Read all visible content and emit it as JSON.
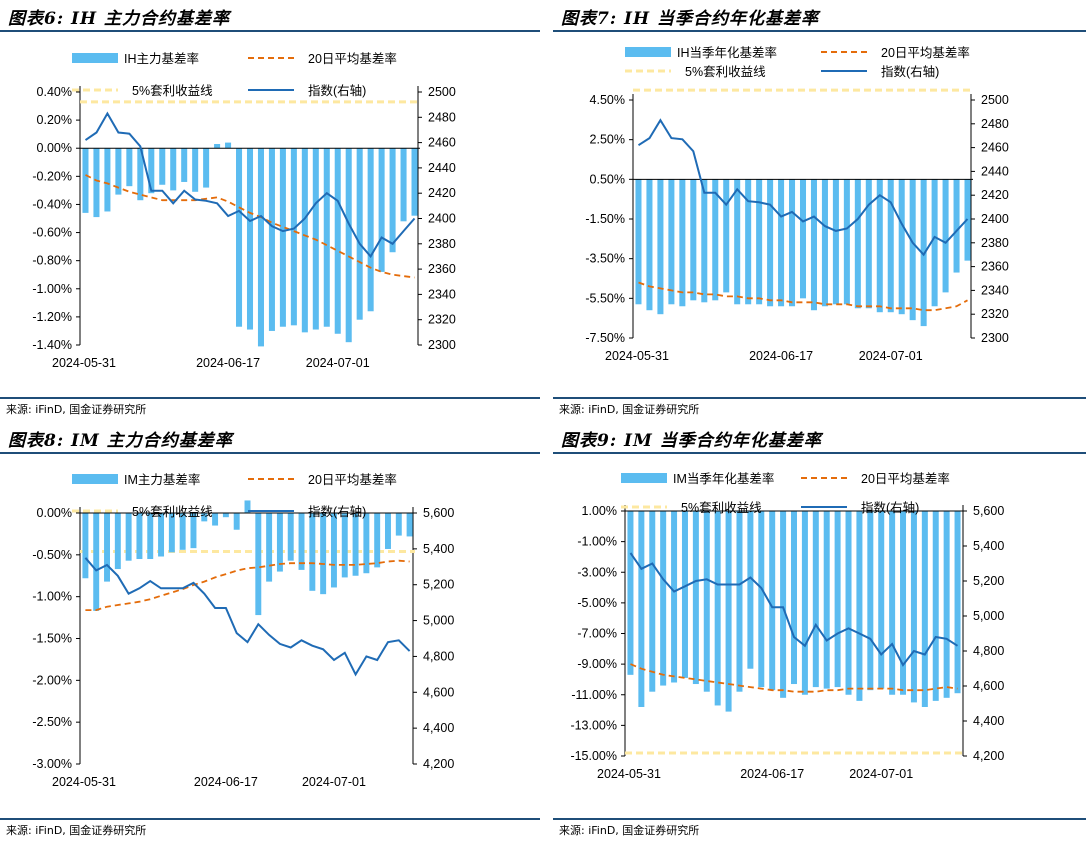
{
  "colors": {
    "bar": "#5bbcf0",
    "ma": "#e46c0a",
    "arb": "#fde8a0",
    "index": "#1f6bb5",
    "rule": "#1f4e79"
  },
  "chart_data": [
    {
      "type": "bar",
      "title": "图表6: IH 主力合约基差率",
      "source": "来源: iFinD, 国金证券研究所",
      "legend": {
        "bar": "IH主力基差率",
        "ma": "20日平均基差率",
        "arb": "5%套利收益线",
        "index": "指数(右轴)"
      },
      "x_ticks": [
        "2024-05-31",
        "2024-06-17",
        "2024-07-01"
      ],
      "x_tick_index": [
        0,
        13,
        23
      ],
      "y_left": {
        "min": -1.4,
        "max": 0.4,
        "step": 0.2,
        "decimals": 2,
        "suffix": "%"
      },
      "y_right": {
        "min": 2300,
        "max": 2500,
        "step": 20,
        "sep": ""
      },
      "arb_level": 0.33,
      "bars": [
        -0.46,
        -0.49,
        -0.45,
        -0.33,
        -0.27,
        -0.37,
        -0.32,
        -0.26,
        -0.3,
        -0.24,
        -0.31,
        -0.28,
        0.03,
        0.04,
        -1.27,
        -1.29,
        -1.41,
        -1.3,
        -1.27,
        -1.26,
        -1.31,
        -1.29,
        -1.27,
        -1.32,
        -1.38,
        -1.22,
        -1.16,
        -0.88,
        -0.74,
        -0.52,
        -0.48
      ],
      "ma": [
        -0.19,
        -0.23,
        -0.25,
        -0.28,
        -0.31,
        -0.33,
        -0.35,
        -0.37,
        -0.37,
        -0.37,
        -0.37,
        -0.36,
        -0.35,
        -0.38,
        -0.42,
        -0.46,
        -0.49,
        -0.53,
        -0.56,
        -0.59,
        -0.62,
        -0.65,
        -0.69,
        -0.73,
        -0.77,
        -0.81,
        -0.85,
        -0.88,
        -0.9,
        -0.91,
        -0.92
      ],
      "ma_from": 0,
      "arb_left": true,
      "index": [
        2462,
        2468,
        2483,
        2468,
        2467,
        2457,
        2422,
        2422,
        2412,
        2422,
        2415,
        2414,
        2412,
        2402,
        2406,
        2398,
        2402,
        2394,
        2390,
        2392,
        2400,
        2412,
        2420,
        2414,
        2396,
        2380,
        2370,
        2385,
        2380,
        2390,
        2400
      ],
      "index_from": 0,
      "bar_edge": 0
    },
    {
      "type": "bar",
      "title": "图表7: IH 当季合约年化基差率",
      "source": "来源: iFinD, 国金证券研究所",
      "legend": {
        "bar": "IH当季年化基差率",
        "ma": "20日平均基差率",
        "arb": "5%套利收益线",
        "index": "指数(右轴)"
      },
      "x_ticks": [
        "2024-05-31",
        "2024-06-17",
        "2024-07-01"
      ],
      "x_tick_index": [
        0,
        13,
        23
      ],
      "y_left": {
        "min": -7.5,
        "max": 4.5,
        "step": 2,
        "decimals": 2,
        "suffix": "%",
        "offset_start": 0.5
      },
      "y_right": {
        "min": 2300,
        "max": 2500,
        "step": 20,
        "sep": ""
      },
      "arb_level": 5,
      "bars": [
        -5.8,
        -6.1,
        -6.3,
        -5.8,
        -5.9,
        -5.6,
        -5.7,
        -5.6,
        -5.2,
        -5.8,
        -5.8,
        -5.8,
        -5.9,
        -5.9,
        -5.9,
        -5.5,
        -6.1,
        -5.9,
        -5.8,
        -5.8,
        -6,
        -6,
        -6.2,
        -6.2,
        -6.3,
        -6.6,
        -6.9,
        -5.9,
        -5.2,
        -4.2,
        -3.6
      ],
      "ma": [
        -4.7,
        -4.9,
        -5,
        -5.1,
        -5.2,
        -5.2,
        -5.3,
        -5.3,
        -5.4,
        -5.4,
        -5.5,
        -5.5,
        -5.6,
        -5.6,
        -5.7,
        -5.7,
        -5.7,
        -5.8,
        -5.8,
        -5.8,
        -5.9,
        -5.9,
        -5.9,
        -6,
        -6,
        -6,
        -6.1,
        -6.1,
        -6,
        -5.9,
        -5.6
      ],
      "ma_from": 0,
      "index": [
        2462,
        2468,
        2483,
        2468,
        2467,
        2457,
        2422,
        2422,
        2412,
        2425,
        2415,
        2414,
        2412,
        2402,
        2406,
        2398,
        2402,
        2394,
        2390,
        2392,
        2400,
        2412,
        2420,
        2414,
        2396,
        2380,
        2370,
        2385,
        2380,
        2390,
        2400
      ],
      "index_from": 0,
      "bar_edge": 0.5
    },
    {
      "type": "bar",
      "title": "图表8: IM 主力合约基差率",
      "source": "来源: iFinD, 国金证券研究所",
      "legend": {
        "bar": "IM主力基差率",
        "ma": "20日平均基差率",
        "arb": "5%套利收益线",
        "index": "指数(右轴)"
      },
      "x_ticks": [
        "2024-05-31",
        "2024-06-17",
        "2024-07-01"
      ],
      "x_tick_index": [
        0,
        13,
        23
      ],
      "y_left": {
        "min": -3,
        "max": 0,
        "step": 0.5,
        "decimals": 2,
        "suffix": "%"
      },
      "y_right": {
        "min": 4200,
        "max": 5600,
        "step": 200,
        "sep": ","
      },
      "arb_level": -0.46,
      "bars": [
        -0.78,
        -1.17,
        -0.82,
        -0.67,
        -0.57,
        -0.55,
        -0.55,
        -0.52,
        -0.47,
        -0.44,
        -0.42,
        -0.1,
        -0.15,
        -0.05,
        -0.2,
        0.15,
        -1.22,
        -0.82,
        -0.7,
        -0.57,
        -0.68,
        -0.93,
        -0.97,
        -0.89,
        -0.77,
        -0.75,
        -0.72,
        -0.65,
        -0.43,
        -0.27,
        -0.28
      ],
      "ma": [
        -1.16,
        -1.16,
        -1.12,
        -1.1,
        -1.08,
        -1.06,
        -1.03,
        -0.99,
        -0.95,
        -0.91,
        -0.86,
        -0.82,
        -0.77,
        -0.73,
        -0.69,
        -0.66,
        -0.65,
        -0.63,
        -0.61,
        -0.6,
        -0.6,
        -0.6,
        -0.61,
        -0.62,
        -0.62,
        -0.62,
        -0.61,
        -0.6,
        -0.58,
        -0.57,
        -0.58
      ],
      "ma_from": 0,
      "index": [
        5350,
        5280,
        5310,
        5250,
        5150,
        5180,
        5220,
        5180,
        5180,
        5180,
        5210,
        5150,
        5070,
        5070,
        4930,
        4880,
        4980,
        4920,
        4870,
        4850,
        4890,
        4860,
        4840,
        4780,
        4820,
        4700,
        4800,
        4780,
        4880,
        4890,
        4830
      ],
      "index_from": 0,
      "bar_edge": 0
    },
    {
      "type": "bar",
      "title": "图表9: IM 当季合约年化基差率",
      "source": "来源: iFinD, 国金证券研究所",
      "legend": {
        "bar": "IM当季年化基差率",
        "ma": "20日平均基差率",
        "arb": "5%套利收益线",
        "index": "指数(右轴)"
      },
      "x_ticks": [
        "2024-05-31",
        "2024-06-17",
        "2024-07-01"
      ],
      "x_tick_index": [
        0,
        13,
        23
      ],
      "y_left": {
        "min": -15,
        "max": 1,
        "step": 2,
        "decimals": 2,
        "suffix": "%"
      },
      "y_right": {
        "min": 4200,
        "max": 5600,
        "step": 200,
        "sep": ","
      },
      "arb_level": -14.8,
      "bars": [
        -9.7,
        -11.8,
        -10.8,
        -10.4,
        -10.2,
        -9.9,
        -10.3,
        -10.8,
        -11.7,
        -12.1,
        -10.8,
        -9.3,
        -10.5,
        -10.7,
        -11.2,
        -10.3,
        -11,
        -10.5,
        -10.6,
        -10.5,
        -11,
        -11.4,
        -10.7,
        -10.6,
        -11,
        -11,
        -11.5,
        -11.8,
        -11.4,
        -11.2,
        -10.9
      ],
      "ma": [
        -9,
        -9.3,
        -9.5,
        -9.7,
        -9.8,
        -9.9,
        -10,
        -10.1,
        -10.2,
        -10.3,
        -10.4,
        -10.5,
        -10.6,
        -10.7,
        -10.7,
        -10.8,
        -10.8,
        -10.8,
        -10.7,
        -10.7,
        -10.6,
        -10.6,
        -10.6,
        -10.6,
        -10.6,
        -10.7,
        -10.7,
        -10.7,
        -10.6,
        -10.5,
        -10.6
      ],
      "ma_from": 0,
      "index": [
        5360,
        5270,
        5300,
        5210,
        5140,
        5170,
        5200,
        5210,
        5180,
        5180,
        5180,
        5220,
        5160,
        5050,
        5050,
        4880,
        4830,
        4950,
        4860,
        4900,
        4930,
        4900,
        4870,
        4780,
        4840,
        4720,
        4800,
        4780,
        4880,
        4870,
        4830
      ],
      "index_from": 0,
      "bar_edge": 1
    }
  ]
}
